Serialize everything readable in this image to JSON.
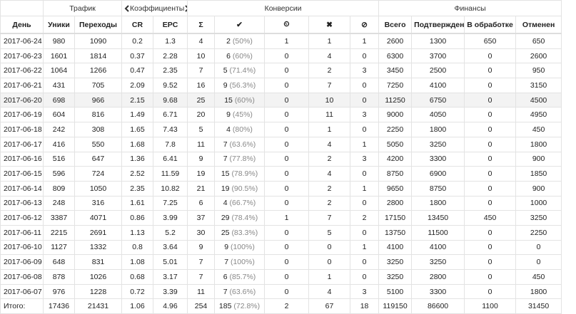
{
  "groups": [
    {
      "label": "",
      "span": 1
    },
    {
      "label": "Трафик",
      "span": 2
    },
    {
      "label": "Коэффициенты",
      "span": 2
    },
    {
      "label": "Конверсии",
      "span": 5
    },
    {
      "label": "Финансы",
      "span": 4
    }
  ],
  "columns": [
    "День",
    "Уники",
    "Переходы",
    "CR",
    "EPC",
    "Σ",
    "✔",
    "⏲",
    "✖",
    "⊘",
    "Всего",
    "Подтвержден",
    "В обработке",
    "Отменен"
  ],
  "rows": [
    [
      "2017-06-24",
      "980",
      "1090",
      "0.2",
      "1.3",
      "4",
      [
        "2",
        "(50%)"
      ],
      "1",
      "1",
      "1",
      "2600",
      "1300",
      "650",
      "650"
    ],
    [
      "2017-06-23",
      "1601",
      "1814",
      "0.37",
      "2.28",
      "10",
      [
        "6",
        "(60%)"
      ],
      "0",
      "4",
      "0",
      "6300",
      "3700",
      "0",
      "2600"
    ],
    [
      "2017-06-22",
      "1064",
      "1266",
      "0.47",
      "2.35",
      "7",
      [
        "5",
        "(71.4%)"
      ],
      "0",
      "2",
      "3",
      "3450",
      "2500",
      "0",
      "950"
    ],
    [
      "2017-06-21",
      "431",
      "705",
      "2.09",
      "9.52",
      "16",
      [
        "9",
        "(56.3%)"
      ],
      "0",
      "7",
      "0",
      "7250",
      "4100",
      "0",
      "3150"
    ],
    [
      "2017-06-20",
      "698",
      "966",
      "2.15",
      "9.68",
      "25",
      [
        "15",
        "(60%)"
      ],
      "0",
      "10",
      "0",
      "11250",
      "6750",
      "0",
      "4500"
    ],
    [
      "2017-06-19",
      "604",
      "816",
      "1.49",
      "6.71",
      "20",
      [
        "9",
        "(45%)"
      ],
      "0",
      "11",
      "3",
      "9000",
      "4050",
      "0",
      "4950"
    ],
    [
      "2017-06-18",
      "242",
      "308",
      "1.65",
      "7.43",
      "5",
      [
        "4",
        "(80%)"
      ],
      "0",
      "1",
      "0",
      "2250",
      "1800",
      "0",
      "450"
    ],
    [
      "2017-06-17",
      "416",
      "550",
      "1.68",
      "7.8",
      "11",
      [
        "7",
        "(63.6%)"
      ],
      "0",
      "4",
      "1",
      "5050",
      "3250",
      "0",
      "1800"
    ],
    [
      "2017-06-16",
      "516",
      "647",
      "1.36",
      "6.41",
      "9",
      [
        "7",
        "(77.8%)"
      ],
      "0",
      "2",
      "3",
      "4200",
      "3300",
      "0",
      "900"
    ],
    [
      "2017-06-15",
      "596",
      "724",
      "2.52",
      "11.59",
      "19",
      [
        "15",
        "(78.9%)"
      ],
      "0",
      "4",
      "0",
      "8750",
      "6900",
      "0",
      "1850"
    ],
    [
      "2017-06-14",
      "809",
      "1050",
      "2.35",
      "10.82",
      "21",
      [
        "19",
        "(90.5%)"
      ],
      "0",
      "2",
      "1",
      "9650",
      "8750",
      "0",
      "900"
    ],
    [
      "2017-06-13",
      "248",
      "316",
      "1.61",
      "7.25",
      "6",
      [
        "4",
        "(66.7%)"
      ],
      "0",
      "2",
      "0",
      "2800",
      "1800",
      "0",
      "1000"
    ],
    [
      "2017-06-12",
      "3387",
      "4071",
      "0.86",
      "3.99",
      "37",
      [
        "29",
        "(78.4%)"
      ],
      "1",
      "7",
      "2",
      "17150",
      "13450",
      "450",
      "3250"
    ],
    [
      "2017-06-11",
      "2215",
      "2691",
      "1.13",
      "5.2",
      "30",
      [
        "25",
        "(83.3%)"
      ],
      "0",
      "5",
      "0",
      "13750",
      "11500",
      "0",
      "2250"
    ],
    [
      "2017-06-10",
      "1127",
      "1332",
      "0.8",
      "3.64",
      "9",
      [
        "9",
        "(100%)"
      ],
      "0",
      "0",
      "1",
      "4100",
      "4100",
      "0",
      "0"
    ],
    [
      "2017-06-09",
      "648",
      "831",
      "1.08",
      "5.01",
      "7",
      [
        "7",
        "(100%)"
      ],
      "0",
      "0",
      "0",
      "3250",
      "3250",
      "0",
      "0"
    ],
    [
      "2017-06-08",
      "878",
      "1026",
      "0.68",
      "3.17",
      "7",
      [
        "6",
        "(85.7%)"
      ],
      "0",
      "1",
      "0",
      "3250",
      "2800",
      "0",
      "450"
    ],
    [
      "2017-06-07",
      "976",
      "1228",
      "0.72",
      "3.39",
      "11",
      [
        "7",
        "(63.6%)"
      ],
      "0",
      "4",
      "3",
      "5100",
      "3300",
      "0",
      "1800"
    ]
  ],
  "total": [
    "Итого:",
    "17436",
    "21431",
    "1.06",
    "4.96",
    "254",
    [
      "185",
      "(72.8%)"
    ],
    "2",
    "67",
    "18",
    "119150",
    "86600",
    "1100",
    "31450"
  ]
}
